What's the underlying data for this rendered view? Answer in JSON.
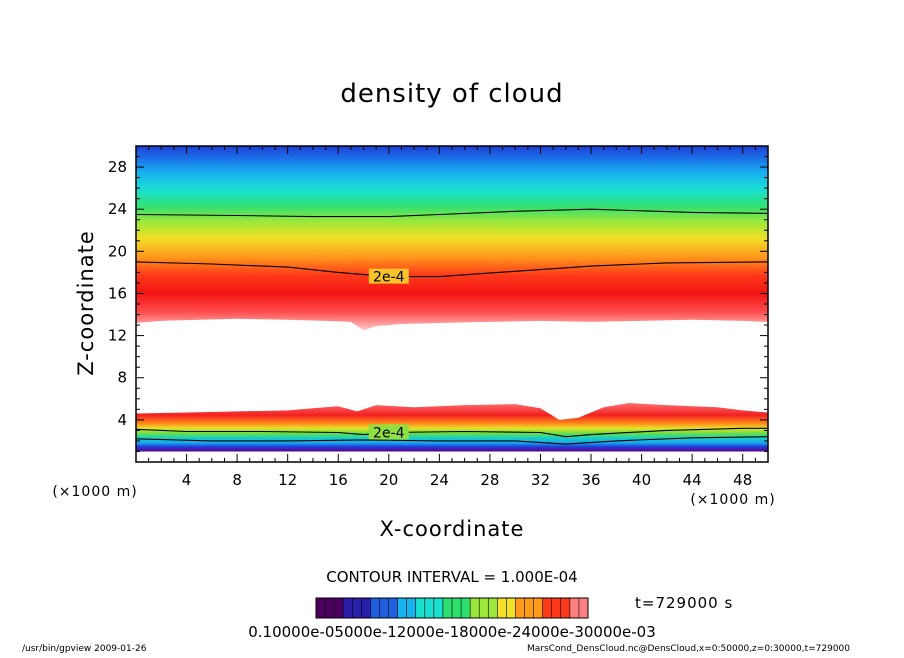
{
  "chart_data": {
    "type": "heatmap",
    "title": "density of cloud",
    "xlabel": "X-coordinate",
    "ylabel": "Z-coordinate",
    "x_unit_label": "(×1000 m)",
    "y_unit_label": "(×1000 m)",
    "xlim": [
      0,
      50
    ],
    "ylim": [
      0,
      30
    ],
    "x_ticks": [
      4,
      8,
      12,
      16,
      20,
      24,
      28,
      32,
      36,
      40,
      44,
      48
    ],
    "y_ticks": [
      4,
      8,
      12,
      16,
      20,
      24,
      28
    ],
    "contour_interval_text": "CONTOUR INTERVAL = 1.000E-04",
    "time_text": "t=729000 s",
    "colorbar_label_text": "0.10000e-05000e-12000e-18000e-24000e-30000e-03",
    "contour_line_labels": [
      "2e-4",
      "2e-4"
    ],
    "upper_contour_lines": [
      {
        "x": [
          0,
          8,
          14,
          20,
          24,
          30,
          36,
          44,
          50
        ],
        "y": [
          23.5,
          23.4,
          23.3,
          23.3,
          23.5,
          23.8,
          24.0,
          23.7,
          23.6
        ]
      },
      {
        "x": [
          0,
          6,
          12,
          16,
          20,
          24,
          30,
          36,
          42,
          50
        ],
        "y": [
          19.0,
          18.8,
          18.5,
          18.0,
          17.6,
          17.6,
          18.1,
          18.6,
          18.9,
          19.0
        ]
      }
    ],
    "lower_contour_lines": [
      {
        "x": [
          0,
          4,
          10,
          16,
          18,
          20,
          26,
          32,
          34,
          36,
          42,
          48,
          50
        ],
        "y": [
          3.1,
          2.9,
          2.9,
          2.8,
          2.6,
          2.8,
          2.9,
          2.8,
          2.4,
          2.6,
          3.0,
          3.2,
          3.2
        ]
      },
      {
        "x": [
          0,
          6,
          12,
          18,
          24,
          30,
          34,
          38,
          44,
          50
        ],
        "y": [
          2.2,
          2.0,
          2.0,
          2.1,
          2.0,
          2.0,
          1.7,
          2.0,
          2.3,
          2.4
        ]
      }
    ],
    "upper_cloud_base": {
      "x": [
        0,
        2,
        5,
        8,
        12,
        15,
        17,
        18,
        19,
        21,
        24,
        28,
        32,
        36,
        40,
        44,
        48,
        50
      ],
      "y": [
        13.2,
        13.4,
        13.5,
        13.6,
        13.5,
        13.4,
        13.3,
        12.5,
        12.9,
        13.1,
        13.2,
        13.3,
        13.4,
        13.3,
        13.4,
        13.5,
        13.4,
        13.3
      ]
    },
    "upper_cloud_levels": {
      "top": 29.8,
      "peak_band": [
        14.3,
        15.8
      ],
      "contour_values": [
        0.0001,
        0.0002,
        0.0003
      ]
    },
    "lower_cloud_top": {
      "x": [
        0,
        4,
        8,
        12,
        14,
        16,
        17.5,
        19,
        22,
        26,
        30,
        32,
        33.5,
        35,
        37,
        39,
        42,
        46,
        48,
        50
      ],
      "y": [
        4.6,
        4.7,
        4.8,
        4.9,
        5.1,
        5.3,
        4.8,
        5.4,
        5.2,
        5.4,
        5.5,
        5.1,
        4.0,
        4.2,
        5.2,
        5.6,
        5.4,
        5.2,
        4.9,
        4.7
      ]
    },
    "lower_cloud_bottom": 1.0,
    "colorbar": {
      "min": 1e-05,
      "max": 0.0003,
      "colors": [
        "#4b0060",
        "#2a1faa",
        "#1f5fe0",
        "#19b3f0",
        "#19e0d0",
        "#2fe070",
        "#9be83a",
        "#f3e02a",
        "#ff9a1a",
        "#ff3a1a",
        "#ff8080"
      ]
    }
  },
  "footer": {
    "program": "/usr/bin/gpview  2009-01-26",
    "source": "MarsCond_DensCloud.nc@DensCloud,x=0:50000,z=0:30000,t=729000"
  }
}
